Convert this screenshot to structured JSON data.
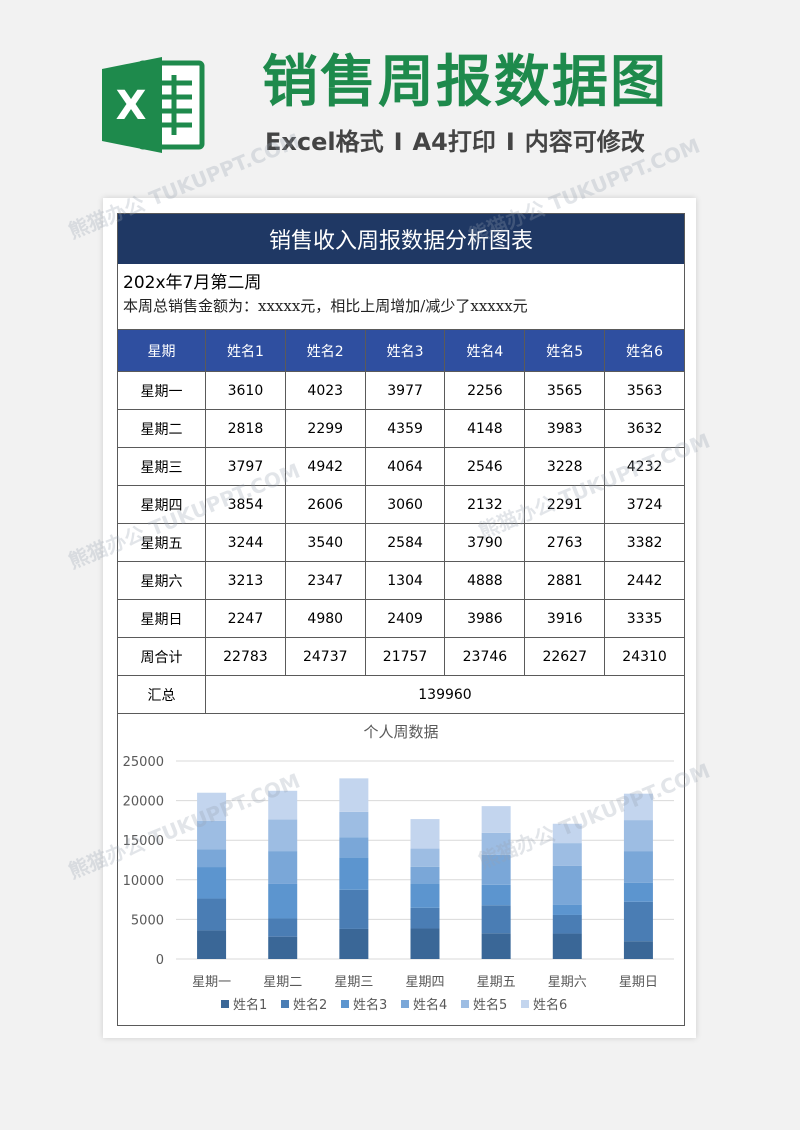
{
  "banner": {
    "title": "销售周报数据图",
    "subtitle_parts": [
      "Excel格式",
      "I",
      "A4打印",
      "I",
      "内容可修改"
    ],
    "accent_color": "#1e8a4c"
  },
  "watermark": "熊猫办公 TUKUPPT.COM",
  "sheet": {
    "title": "销售收入周报数据分析图表",
    "week_label": "202x年7月第二周",
    "summary": "本周总销售金额为：xxxxx元，相比上周增加/减少了xxxxx元",
    "header_color": "#1f3864",
    "table_header_color": "#2f4fa0"
  },
  "table": {
    "headers": [
      "星期",
      "姓名1",
      "姓名2",
      "姓名3",
      "姓名4",
      "姓名5",
      "姓名6"
    ],
    "rows": [
      [
        "星期一",
        "3610",
        "4023",
        "3977",
        "2256",
        "3565",
        "3563"
      ],
      [
        "星期二",
        "2818",
        "2299",
        "4359",
        "4148",
        "3983",
        "3632"
      ],
      [
        "星期三",
        "3797",
        "4942",
        "4064",
        "2546",
        "3228",
        "4232"
      ],
      [
        "星期四",
        "3854",
        "2606",
        "3060",
        "2132",
        "2291",
        "3724"
      ],
      [
        "星期五",
        "3244",
        "3540",
        "2584",
        "3790",
        "2763",
        "3382"
      ],
      [
        "星期六",
        "3213",
        "2347",
        "1304",
        "4888",
        "2881",
        "2442"
      ],
      [
        "星期日",
        "2247",
        "4980",
        "2409",
        "3986",
        "3916",
        "3335"
      ],
      [
        "周合计",
        "22783",
        "24737",
        "21757",
        "23746",
        "22627",
        "24310"
      ]
    ],
    "total_label": "汇总",
    "total_value": "139960"
  },
  "chart_data": {
    "type": "bar",
    "stacked": true,
    "title": "个人周数据",
    "categories": [
      "星期一",
      "星期二",
      "星期三",
      "星期四",
      "星期五",
      "星期六",
      "星期日"
    ],
    "ylim": [
      0,
      25000
    ],
    "yticks": [
      0,
      5000,
      10000,
      15000,
      20000,
      25000
    ],
    "grid": true,
    "legend_position": "bottom",
    "series": [
      {
        "name": "姓名1",
        "color": "#3a6797",
        "values": [
          3610,
          2818,
          3797,
          3854,
          3244,
          3213,
          2247
        ]
      },
      {
        "name": "姓名2",
        "color": "#4a7db4",
        "values": [
          4023,
          2299,
          4942,
          2606,
          3540,
          2347,
          4980
        ]
      },
      {
        "name": "姓名3",
        "color": "#5c95cf",
        "values": [
          3977,
          4359,
          4064,
          3060,
          2584,
          1304,
          2409
        ]
      },
      {
        "name": "姓名4",
        "color": "#7aa7d8",
        "values": [
          2256,
          4148,
          2546,
          2132,
          3790,
          4888,
          3986
        ]
      },
      {
        "name": "姓名5",
        "color": "#9dbde3",
        "values": [
          3565,
          3983,
          3228,
          2291,
          2763,
          2881,
          3916
        ]
      },
      {
        "name": "姓名6",
        "color": "#c3d5ee",
        "values": [
          3563,
          3632,
          4232,
          3724,
          3382,
          2442,
          3335
        ]
      }
    ]
  }
}
